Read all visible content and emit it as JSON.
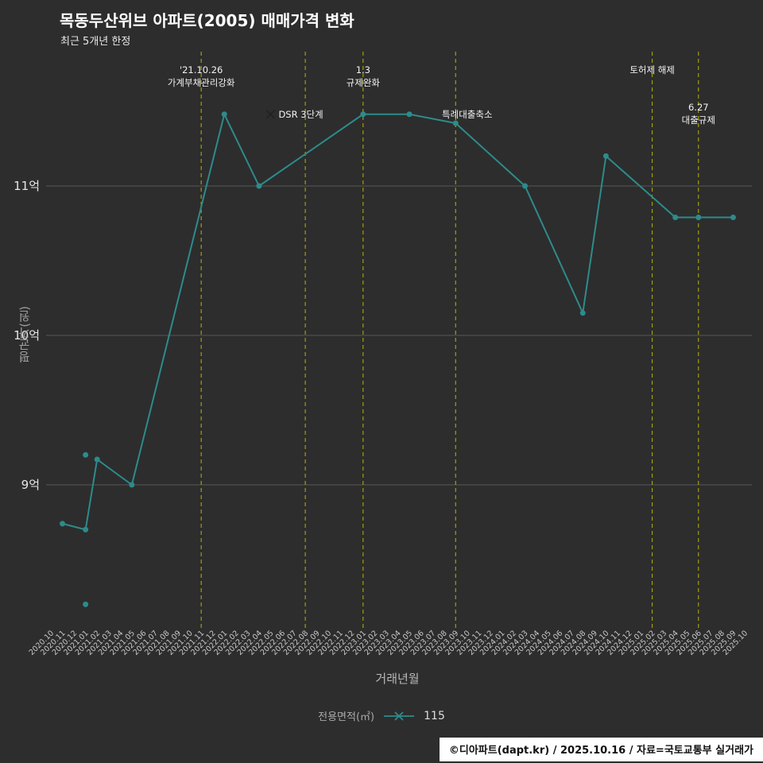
{
  "title": "목동두산위브 아파트(2005) 매매가격 변화",
  "subtitle": "최근 5개년 한정",
  "xlabel": "거래년월",
  "ylabel": "평균가(원)",
  "legend": {
    "prefix": "전용면적(㎡)",
    "series": "115"
  },
  "footer": "©디아파트(dapt.kr) / 2025.10.16 / 자료=국토교통부 실거래가",
  "colors": {
    "background": "#2d2d2d",
    "line": "#2e8b8b",
    "grid": "#565656",
    "annotation_line": "#b8b400",
    "tick_text": "#c9c9c9",
    "annotation_text": "#f2f2f2",
    "footer_bg": "#ffffff",
    "footer_text": "#111111"
  },
  "chart_data": {
    "type": "line",
    "title": "목동두산위브 아파트(2005) 매매가격 변화",
    "xlabel": "거래년월",
    "ylabel": "평균가(원)",
    "ylim": [
      8.0,
      11.9
    ],
    "grid": "horizontal-only",
    "legend_position": "bottom-center",
    "x_categories": [
      "2020.10",
      "2020.11",
      "2020.12",
      "2021.01",
      "2021.02",
      "2021.03",
      "2021.04",
      "2021.05",
      "2021.06",
      "2021.07",
      "2021.08",
      "2021.09",
      "2021.10",
      "2021.11",
      "2021.12",
      "2022.01",
      "2022.02",
      "2022.03",
      "2022.04",
      "2022.05",
      "2022.06",
      "2022.07",
      "2022.08",
      "2022.09",
      "2022.10",
      "2022.11",
      "2022.12",
      "2023.01",
      "2023.02",
      "2023.03",
      "2023.04",
      "2023.05",
      "2023.06",
      "2023.07",
      "2023.08",
      "2023.09",
      "2023.10",
      "2023.11",
      "2023.12",
      "2024.01",
      "2024.02",
      "2024.03",
      "2024.04",
      "2024.05",
      "2024.06",
      "2024.07",
      "2024.08",
      "2024.09",
      "2024.10",
      "2024.11",
      "2024.12",
      "2025.01",
      "2025.02",
      "2025.03",
      "2025.04",
      "2025.05",
      "2025.06",
      "2025.07",
      "2025.08",
      "2025.09",
      "2025.10"
    ],
    "y_ticks": [
      {
        "value": 9,
        "label": "9억"
      },
      {
        "value": 10,
        "label": "10억"
      },
      {
        "value": 11,
        "label": "11억"
      }
    ],
    "y_unit": "억",
    "series": [
      {
        "name": "115",
        "points": [
          [
            "2020.11",
            8.74
          ],
          [
            "2021.01",
            8.7
          ],
          [
            "2021.02",
            9.17
          ],
          [
            "2021.05",
            9.0
          ],
          [
            "2022.01",
            11.48
          ],
          [
            "2022.04",
            11.0
          ],
          [
            "2023.01",
            11.48
          ],
          [
            "2023.05",
            11.48
          ],
          [
            "2023.09",
            11.42
          ],
          [
            "2024.03",
            11.0
          ],
          [
            "2024.08",
            10.15
          ],
          [
            "2024.10",
            11.2
          ],
          [
            "2025.04",
            10.79
          ],
          [
            "2025.06",
            10.79
          ],
          [
            "2025.09",
            10.79
          ]
        ]
      }
    ],
    "scatter_points": [
      [
        "2021.01",
        9.2
      ],
      [
        "2021.01",
        8.2
      ]
    ],
    "annotations": {
      "vlines": [
        "2021.11",
        "2022.08",
        "2023.01",
        "2023.09",
        "2025.02",
        "2025.06"
      ],
      "labels": [
        {
          "anchor": "2021.11",
          "lines": [
            "'21.10.26",
            "가계부채관리강화"
          ],
          "placement": "top",
          "align": "center"
        },
        {
          "anchor": "2023.01",
          "lines": [
            "1.3",
            "규제완화"
          ],
          "placement": "top",
          "align": "center"
        },
        {
          "anchor": "2025.02",
          "lines": [
            "토허제 해제"
          ],
          "placement": "top",
          "align": "center"
        },
        {
          "anchor": "2025.06",
          "lines": [
            "6.27",
            "대출규제"
          ],
          "placement": "upper",
          "align": "center"
        },
        {
          "anchor": "2022.05",
          "lines": [
            "DSR 3단계"
          ],
          "placement": "point",
          "align": "left",
          "value": 11.48,
          "marker": "x"
        },
        {
          "anchor": "2023.10",
          "lines": [
            "특례대출축소"
          ],
          "placement": "point",
          "align": "center",
          "value": 11.48
        }
      ]
    }
  }
}
